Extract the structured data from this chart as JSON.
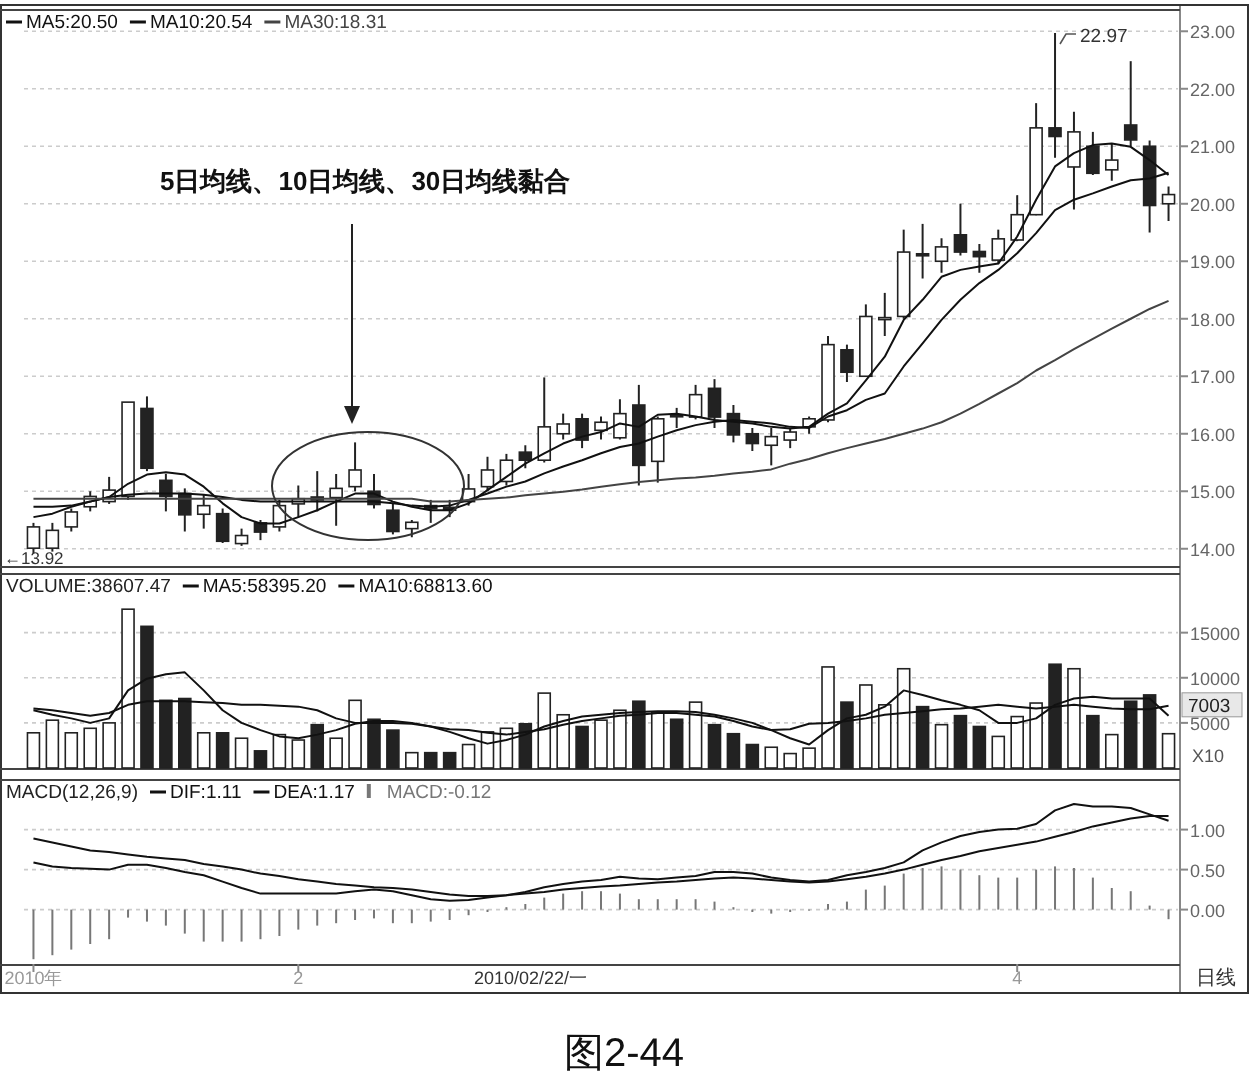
{
  "chart_data": [
    {
      "type": "candlestick",
      "categories": [
        null,
        null,
        null,
        null,
        null,
        null,
        null,
        null,
        null,
        null,
        null,
        null,
        null,
        null,
        null,
        null,
        null,
        null,
        null,
        null,
        null,
        null,
        null,
        null,
        null,
        null,
        null,
        null,
        null,
        null,
        null,
        null,
        null,
        null,
        null,
        null,
        null,
        null,
        null,
        null,
        null,
        null,
        null,
        null,
        null,
        null,
        null,
        null,
        null,
        null,
        null,
        null,
        null,
        null,
        null,
        null,
        null,
        null,
        null,
        null,
        null
      ],
      "ohlc": [
        [
          14.01,
          14.45,
          13.92,
          14.38
        ],
        [
          14.01,
          14.45,
          13.95,
          14.32
        ],
        [
          14.38,
          14.7,
          14.3,
          14.64
        ],
        [
          14.73,
          15.0,
          14.65,
          14.91
        ],
        [
          14.82,
          15.25,
          14.78,
          15.02
        ],
        [
          14.91,
          16.55,
          14.85,
          16.55
        ],
        [
          16.44,
          16.65,
          15.35,
          15.4
        ],
        [
          15.19,
          15.3,
          14.65,
          14.91
        ],
        [
          14.96,
          15.05,
          14.3,
          14.59
        ],
        [
          14.6,
          14.95,
          14.35,
          14.75
        ],
        [
          14.61,
          14.7,
          14.1,
          14.13
        ],
        [
          14.09,
          14.35,
          14.05,
          14.23
        ],
        [
          14.45,
          14.5,
          14.15,
          14.29
        ],
        [
          14.38,
          14.85,
          14.3,
          14.75
        ],
        [
          14.78,
          15.1,
          14.55,
          14.87
        ],
        [
          14.9,
          15.35,
          14.65,
          14.85
        ],
        [
          14.89,
          15.3,
          14.4,
          15.05
        ],
        [
          15.08,
          15.85,
          15.0,
          15.37
        ],
        [
          15.0,
          15.3,
          14.7,
          14.77
        ],
        [
          14.67,
          14.8,
          14.25,
          14.3
        ],
        [
          14.35,
          14.5,
          14.2,
          14.46
        ],
        [
          14.75,
          14.85,
          14.45,
          14.7
        ],
        [
          14.72,
          14.85,
          14.55,
          14.67
        ],
        [
          14.82,
          15.3,
          14.75,
          15.04
        ],
        [
          15.08,
          15.6,
          15.0,
          15.37
        ],
        [
          15.17,
          15.65,
          15.1,
          15.54
        ],
        [
          15.68,
          15.8,
          15.4,
          15.54
        ],
        [
          15.54,
          16.98,
          15.5,
          16.12
        ],
        [
          16.0,
          16.35,
          15.9,
          16.17
        ],
        [
          16.26,
          16.35,
          15.75,
          15.89
        ],
        [
          16.06,
          16.3,
          15.9,
          16.2
        ],
        [
          15.93,
          16.6,
          15.9,
          16.35
        ],
        [
          16.5,
          16.85,
          15.1,
          15.45
        ],
        [
          15.52,
          16.3,
          15.15,
          16.26
        ],
        [
          16.33,
          16.45,
          16.1,
          16.32
        ],
        [
          16.29,
          16.85,
          16.25,
          16.68
        ],
        [
          16.79,
          16.95,
          16.1,
          16.29
        ],
        [
          16.35,
          16.5,
          15.85,
          15.98
        ],
        [
          16.0,
          16.1,
          15.7,
          15.83
        ],
        [
          15.8,
          16.1,
          15.45,
          15.95
        ],
        [
          15.89,
          16.1,
          15.75,
          16.03
        ],
        [
          16.12,
          16.3,
          16.0,
          16.26
        ],
        [
          16.24,
          17.7,
          16.2,
          17.55
        ],
        [
          17.46,
          17.55,
          16.9,
          17.07
        ],
        [
          17.0,
          18.25,
          17.0,
          18.04
        ],
        [
          18.0,
          18.45,
          17.7,
          18.02
        ],
        [
          18.04,
          19.55,
          18.0,
          19.16
        ],
        [
          19.13,
          19.65,
          18.7,
          19.1
        ],
        [
          19.0,
          19.4,
          18.8,
          19.25
        ],
        [
          19.46,
          20.0,
          19.1,
          19.16
        ],
        [
          19.17,
          19.3,
          18.8,
          19.08
        ],
        [
          19.02,
          19.55,
          18.95,
          19.39
        ],
        [
          19.37,
          20.15,
          19.35,
          19.81
        ],
        [
          19.81,
          21.75,
          19.8,
          21.32
        ],
        [
          21.32,
          22.97,
          20.8,
          21.17
        ],
        [
          20.64,
          21.6,
          19.9,
          21.25
        ],
        [
          21.0,
          21.25,
          20.5,
          20.53
        ],
        [
          20.59,
          21.05,
          20.4,
          20.76
        ],
        [
          21.37,
          22.48,
          21.0,
          21.11
        ],
        [
          21.0,
          21.1,
          19.5,
          19.97
        ],
        [
          20.0,
          20.3,
          19.7,
          20.16
        ]
      ],
      "series": [
        {
          "name": "MA5:20.50",
          "type": "line",
          "color": "#111111",
          "values": [
            14.55,
            14.61,
            14.73,
            14.82,
            14.9,
            15.13,
            15.29,
            15.33,
            15.29,
            15.08,
            14.79,
            14.55,
            14.44,
            14.44,
            14.55,
            14.67,
            14.82,
            14.96,
            14.96,
            14.82,
            14.73,
            14.67,
            14.67,
            14.79,
            15.02,
            15.25,
            15.48,
            15.66,
            15.83,
            15.95,
            16.03,
            16.18,
            16.12,
            16.33,
            16.35,
            16.3,
            16.24,
            16.21,
            16.18,
            16.12,
            16.09,
            16.12,
            16.35,
            16.53,
            16.93,
            17.34,
            17.98,
            18.33,
            18.73,
            18.85,
            18.91,
            18.96,
            19.43,
            20.07,
            20.65,
            20.88,
            21.02,
            21.05,
            20.99,
            20.76,
            20.5
          ]
        },
        {
          "name": "MA10:20.54",
          "type": "line",
          "color": "#111111",
          "values": [
            14.73,
            14.73,
            14.75,
            14.82,
            14.9,
            14.94,
            14.96,
            14.96,
            14.96,
            14.94,
            14.9,
            14.85,
            14.82,
            14.82,
            14.82,
            14.82,
            14.82,
            14.82,
            14.82,
            14.79,
            14.75,
            14.73,
            14.75,
            14.85,
            14.96,
            15.08,
            15.17,
            15.31,
            15.43,
            15.54,
            15.66,
            15.77,
            15.83,
            15.95,
            16.06,
            16.15,
            16.21,
            16.24,
            16.21,
            16.18,
            16.12,
            16.1,
            16.3,
            16.41,
            16.59,
            16.7,
            17.17,
            17.57,
            17.98,
            18.33,
            18.62,
            18.85,
            19.14,
            19.49,
            19.89,
            20.07,
            20.18,
            20.3,
            20.41,
            20.44,
            20.54
          ]
        },
        {
          "name": "MA30:18.31",
          "type": "line",
          "color": "#444444",
          "values": [
            14.87,
            14.87,
            14.87,
            14.87,
            14.87,
            14.87,
            14.87,
            14.87,
            14.87,
            14.87,
            14.87,
            14.87,
            14.87,
            14.87,
            14.87,
            14.87,
            14.87,
            14.87,
            14.87,
            14.87,
            14.87,
            14.82,
            14.82,
            14.85,
            14.87,
            14.89,
            14.93,
            14.96,
            14.99,
            15.03,
            15.08,
            15.12,
            15.16,
            15.19,
            15.22,
            15.24,
            15.27,
            15.31,
            15.34,
            15.38,
            15.48,
            15.56,
            15.66,
            15.75,
            15.83,
            15.91,
            16.0,
            16.09,
            16.2,
            16.35,
            16.52,
            16.7,
            16.88,
            17.1,
            17.28,
            17.47,
            17.65,
            17.83,
            18.0,
            18.17,
            18.31
          ]
        }
      ],
      "ylim": [
        13.7,
        23.37
      ],
      "yticks": [
        {
          "value": 14,
          "label": "14.00"
        },
        {
          "value": 15,
          "label": "15.00"
        },
        {
          "value": 16,
          "label": "16.00"
        },
        {
          "value": 17,
          "label": "17.00"
        },
        {
          "value": 18,
          "label": "18.00"
        },
        {
          "value": 19,
          "label": "19.00"
        },
        {
          "value": 20,
          "label": "20.00"
        },
        {
          "value": 21,
          "label": "21.00"
        },
        {
          "value": 22,
          "label": "22.00"
        },
        {
          "value": 23,
          "label": "23.00"
        }
      ],
      "grid": "y",
      "legend": "top left",
      "tick_labels": "y",
      "annotations": [
        "22.97",
        "←13.92",
        "5日均线、10日均线、30日均线黏合"
      ]
    },
    {
      "type": "bar",
      "title": "VOLUME:38607.47",
      "categories": [
        null,
        null,
        null,
        null,
        null,
        null,
        null,
        null,
        null,
        null,
        null,
        null,
        null,
        null,
        null,
        null,
        null,
        null,
        null,
        null,
        null,
        null,
        null,
        null,
        null,
        null,
        null,
        null,
        null,
        null,
        null,
        null,
        null,
        null,
        null,
        null,
        null,
        null,
        null,
        null,
        null,
        null,
        null,
        null,
        null,
        null,
        null,
        null,
        null,
        null,
        null,
        null,
        null,
        null,
        null,
        null,
        null,
        null,
        null,
        null,
        null
      ],
      "series": [
        {
          "type": "bar",
          "values": [
            3900,
            5300,
            3900,
            4400,
            5000,
            17600,
            15700,
            7500,
            7700,
            3900,
            3900,
            3300,
            1900,
            3700,
            3100,
            4800,
            3300,
            7500,
            5400,
            4200,
            1700,
            1700,
            1700,
            2600,
            4000,
            4400,
            4900,
            8300,
            5900,
            4600,
            5300,
            6400,
            7400,
            6200,
            5400,
            7300,
            4800,
            3800,
            2600,
            2300,
            1600,
            2200,
            11200,
            7300,
            9200,
            7000,
            11000,
            6800,
            4800,
            5800,
            4600,
            3500,
            5700,
            7200,
            11500,
            11000,
            5800,
            3700,
            7400,
            8100,
            3800
          ],
          "colors": [
            "#ffffff",
            "#ffffff",
            "#ffffff",
            "#ffffff",
            "#ffffff",
            "#ffffff",
            "#222222",
            "#222222",
            "#222222",
            "#ffffff",
            "#222222",
            "#ffffff",
            "#222222",
            "#ffffff",
            "#ffffff",
            "#222222",
            "#ffffff",
            "#ffffff",
            "#222222",
            "#222222",
            "#ffffff",
            "#222222",
            "#222222",
            "#ffffff",
            "#ffffff",
            "#ffffff",
            "#222222",
            "#ffffff",
            "#ffffff",
            "#222222",
            "#ffffff",
            "#ffffff",
            "#222222",
            "#ffffff",
            "#222222",
            "#ffffff",
            "#222222",
            "#222222",
            "#222222",
            "#ffffff",
            "#ffffff",
            "#ffffff",
            "#ffffff",
            "#222222",
            "#ffffff",
            "#ffffff",
            "#ffffff",
            "#222222",
            "#ffffff",
            "#222222",
            "#222222",
            "#ffffff",
            "#ffffff",
            "#ffffff",
            "#222222",
            "#ffffff",
            "#222222",
            "#ffffff",
            "#222222",
            "#222222",
            "#ffffff"
          ]
        },
        {
          "name": "MA5:58395.20",
          "type": "line",
          "color": "#111111",
          "values": [
            6400,
            5900,
            5500,
            5000,
            5500,
            8600,
            9900,
            10400,
            10600,
            8600,
            6400,
            5000,
            4200,
            3500,
            3300,
            3700,
            4200,
            4900,
            5200,
            5200,
            5000,
            4600,
            4000,
            3300,
            2700,
            3100,
            3700,
            4600,
            5200,
            5700,
            5900,
            6100,
            6200,
            6300,
            6300,
            6200,
            5900,
            5500,
            5000,
            4200,
            3300,
            2600,
            4200,
            5500,
            5900,
            6800,
            8600,
            8100,
            7500,
            7000,
            6400,
            5000,
            5000,
            5500,
            7000,
            7700,
            7900,
            7700,
            7700,
            7700,
            5800
          ]
        },
        {
          "name": "MA10:68813.60",
          "type": "line",
          "color": "#111111",
          "values": [
            6600,
            6400,
            6100,
            5800,
            6100,
            7000,
            7400,
            7400,
            7400,
            7300,
            7200,
            7000,
            7000,
            6900,
            6800,
            6400,
            5500,
            5000,
            5000,
            5000,
            4900,
            4600,
            4300,
            4200,
            3900,
            3700,
            4000,
            4300,
            4800,
            5200,
            5500,
            5800,
            5900,
            6100,
            6100,
            5900,
            5700,
            5200,
            4600,
            4200,
            4300,
            4900,
            5000,
            5200,
            5500,
            5900,
            6100,
            6300,
            6500,
            6600,
            6800,
            7000,
            6800,
            6600,
            6800,
            7000,
            6800,
            6600,
            6500,
            6500,
            6900
          ]
        }
      ],
      "ylim": [
        0,
        21500
      ],
      "yticks": [
        5000,
        10000,
        15000
      ],
      "grid": "y",
      "legend": "top left",
      "tick_labels": "y",
      "annotations": [
        {
          "text": "7003",
          "y": 7003
        },
        "X10"
      ]
    },
    {
      "type": "bar",
      "title": "MACD(12,26,9)",
      "categories": [
        "2010年",
        null,
        null,
        null,
        null,
        null,
        null,
        null,
        null,
        null,
        null,
        null,
        null,
        null,
        "2",
        null,
        null,
        null,
        null,
        null,
        null,
        null,
        null,
        null,
        null,
        null,
        null,
        null,
        null,
        null,
        null,
        null,
        null,
        null,
        null,
        null,
        null,
        null,
        null,
        null,
        null,
        null,
        null,
        null,
        null,
        null,
        null,
        null,
        null,
        null,
        null,
        null,
        "4",
        null,
        null,
        null,
        null,
        null,
        null,
        null,
        null
      ],
      "series": [
        {
          "name": "DIF:1.11",
          "type": "line",
          "color": "#111111",
          "values": [
            0.59,
            0.54,
            0.52,
            0.51,
            0.5,
            0.56,
            0.56,
            0.52,
            0.47,
            0.43,
            0.35,
            0.27,
            0.2,
            0.2,
            0.2,
            0.2,
            0.2,
            0.23,
            0.25,
            0.23,
            0.18,
            0.13,
            0.11,
            0.12,
            0.15,
            0.18,
            0.22,
            0.28,
            0.32,
            0.35,
            0.37,
            0.41,
            0.39,
            0.38,
            0.4,
            0.42,
            0.47,
            0.47,
            0.45,
            0.4,
            0.37,
            0.35,
            0.37,
            0.43,
            0.47,
            0.52,
            0.59,
            0.74,
            0.84,
            0.92,
            0.97,
            1.0,
            1.01,
            1.07,
            1.24,
            1.32,
            1.29,
            1.29,
            1.27,
            1.19,
            1.11
          ]
        },
        {
          "name": "DEA:1.17",
          "type": "line",
          "color": "#111111",
          "values": [
            0.89,
            0.84,
            0.79,
            0.74,
            0.72,
            0.69,
            0.66,
            0.64,
            0.62,
            0.57,
            0.54,
            0.5,
            0.45,
            0.42,
            0.38,
            0.35,
            0.32,
            0.3,
            0.28,
            0.27,
            0.25,
            0.22,
            0.19,
            0.17,
            0.17,
            0.18,
            0.2,
            0.22,
            0.25,
            0.27,
            0.29,
            0.3,
            0.32,
            0.34,
            0.35,
            0.37,
            0.39,
            0.4,
            0.39,
            0.37,
            0.35,
            0.34,
            0.35,
            0.38,
            0.41,
            0.45,
            0.5,
            0.56,
            0.62,
            0.67,
            0.73,
            0.77,
            0.81,
            0.85,
            0.91,
            0.97,
            1.04,
            1.09,
            1.14,
            1.17,
            1.17
          ]
        },
        {
          "name": "MACD:-0.12",
          "type": "bar",
          "color": "#777777",
          "values": [
            -0.62,
            -0.57,
            -0.5,
            -0.43,
            -0.37,
            -0.1,
            -0.15,
            -0.2,
            -0.3,
            -0.4,
            -0.4,
            -0.4,
            -0.37,
            -0.33,
            -0.25,
            -0.2,
            -0.17,
            -0.13,
            -0.11,
            -0.17,
            -0.17,
            -0.15,
            -0.13,
            -0.07,
            -0.03,
            0.03,
            0.07,
            0.15,
            0.2,
            0.23,
            0.23,
            0.2,
            0.13,
            0.13,
            0.13,
            0.13,
            0.1,
            0.03,
            -0.03,
            -0.05,
            -0.03,
            0,
            0.07,
            0.1,
            0.25,
            0.3,
            0.45,
            0.52,
            0.54,
            0.5,
            0.43,
            0.4,
            0.4,
            0.5,
            0.54,
            0.52,
            0.4,
            0.27,
            0.23,
            0.05,
            -0.12
          ]
        }
      ],
      "ylim": [
        -0.68,
        1.62
      ],
      "yticks": [
        {
          "value": 0,
          "label": "0.00"
        },
        {
          "value": 0.5,
          "label": "0.50"
        },
        {
          "value": 1,
          "label": "1.00"
        }
      ],
      "grid": "y",
      "legend": "top left",
      "annotations": [
        "2010/02/22/一",
        "日线",
        "图2-44"
      ]
    }
  ]
}
